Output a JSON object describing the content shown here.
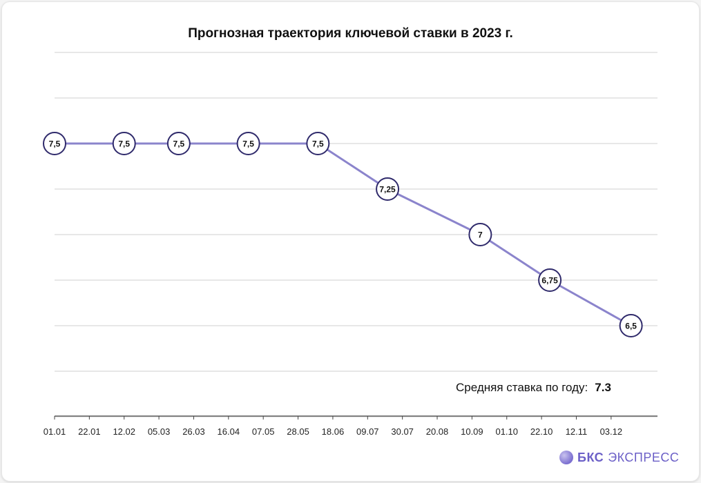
{
  "chart_data": {
    "type": "line",
    "title": "Прогнозная траектория ключевой ставки в 2023 г.",
    "x_ticks": [
      "01.01",
      "22.01",
      "12.02",
      "05.03",
      "26.03",
      "16.04",
      "07.05",
      "28.05",
      "18.06",
      "09.07",
      "30.07",
      "20.08",
      "10.09",
      "01.10",
      "22.10",
      "12.11",
      "03.12"
    ],
    "points": [
      {
        "x": "01.01",
        "y": 7.5,
        "label": "7,5"
      },
      {
        "x": "12.02",
        "y": 7.5,
        "label": "7,5"
      },
      {
        "x": "17.03",
        "y": 7.5,
        "label": "7,5"
      },
      {
        "x": "28.04",
        "y": 7.5,
        "label": "7,5"
      },
      {
        "x": "09.06",
        "y": 7.5,
        "label": "7,5"
      },
      {
        "x": "21.07",
        "y": 7.25,
        "label": "7,25"
      },
      {
        "x": "15.09",
        "y": 7,
        "label": "7"
      },
      {
        "x": "27.10",
        "y": 6.75,
        "label": "6,75"
      },
      {
        "x": "15.12",
        "y": 6.5,
        "label": "6,5"
      }
    ],
    "grid": true,
    "colors": {
      "line": "#8b84cc",
      "marker_border": "#2f2a6b",
      "grid": "#cfcfcf"
    }
  },
  "annotation": {
    "label": "Средняя ставка по году:",
    "value": "7.3"
  },
  "logo": {
    "bold": "БКС",
    "text": "ЭКСПРЕСС"
  }
}
